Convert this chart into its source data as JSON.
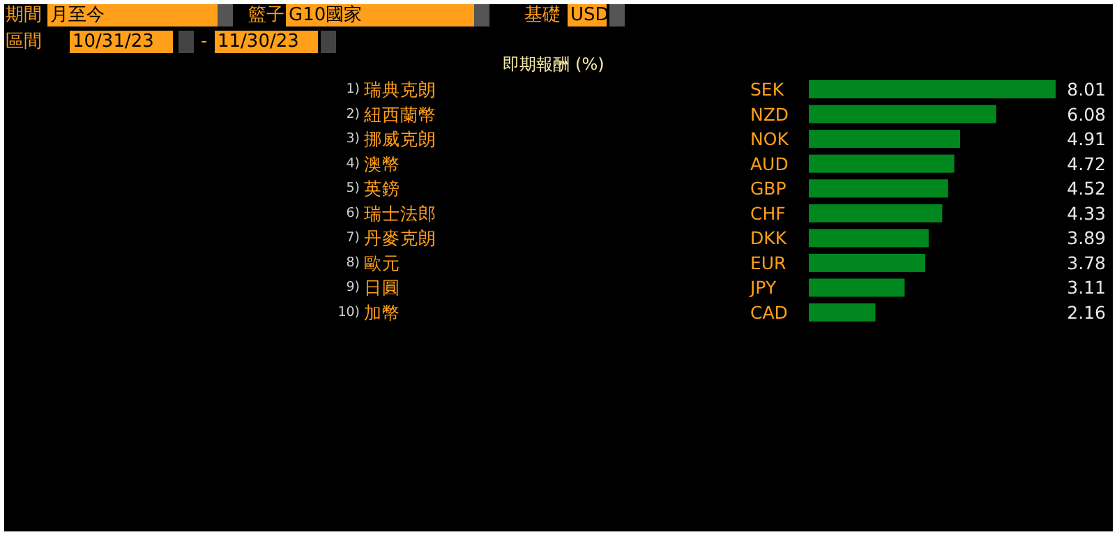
{
  "chart_data": {
    "type": "bar",
    "orientation": "horizontal",
    "title": "即期報酬 (%)",
    "categories": [
      "瑞典克朗",
      "紐西蘭幣",
      "挪威克朗",
      "澳幣",
      "英鎊",
      "瑞士法郎",
      "丹麥克朗",
      "歐元",
      "日圓",
      "加幣"
    ],
    "values": [
      8.01,
      6.08,
      4.91,
      4.72,
      4.52,
      4.33,
      3.89,
      3.78,
      3.11,
      2.16
    ],
    "color": "#00881f",
    "data_labels": true,
    "annotations": [
      "期間",
      "月至今",
      "籃子",
      "G10國家",
      "基礎",
      "USD",
      "區間",
      "10/31/23",
      "-",
      "11/30/23",
      "1)",
      "2)",
      "3)",
      "4)",
      "5)",
      "6)",
      "7)",
      "8)",
      "9)",
      "10)",
      "SEK",
      "NZD",
      "NOK",
      "AUD",
      "GBP",
      "CHF",
      "DKK",
      "EUR",
      "JPY",
      "CAD"
    ]
  }
}
